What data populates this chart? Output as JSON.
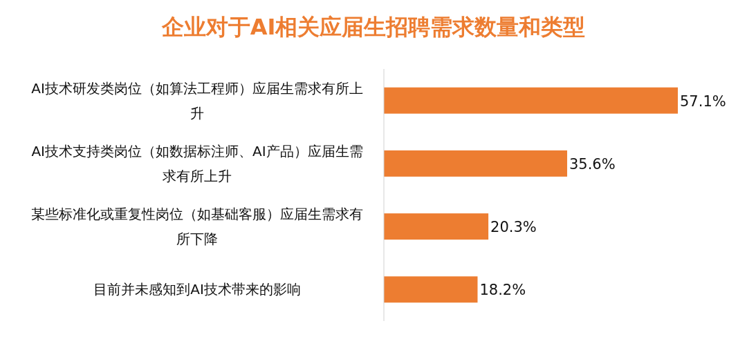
{
  "chart_data": {
    "type": "bar",
    "orientation": "horizontal",
    "title": "企业对于AI相关应届生招聘需求数量和类型",
    "categories": [
      "AI技术研发类岗位（如算法工程师）应届生需求有所上升",
      "AI技术支持类岗位（如数据标注师、AI产品）应届生需求有所上升",
      "某些标准化或重复性岗位（如基础客服）应届生需求有所下降",
      "目前并未感知到AI技术带来的影响"
    ],
    "values": [
      57.1,
      35.6,
      20.3,
      18.2
    ],
    "value_labels": [
      "57.1%",
      "35.6%",
      "20.3%",
      "18.2%"
    ],
    "color": "#ed7d31"
  }
}
